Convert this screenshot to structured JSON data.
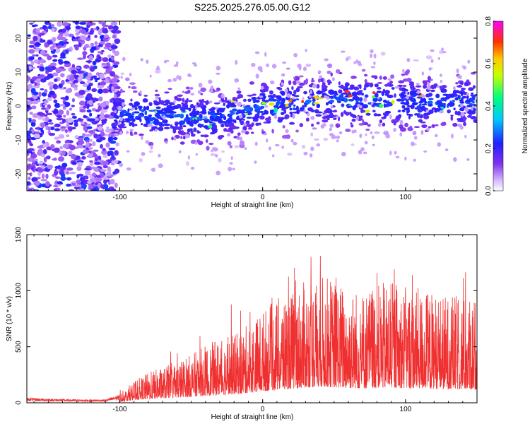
{
  "chart_data": [
    {
      "type": "heatmap",
      "title": "S225.2025.276.05.00.G12",
      "xlabel": "Height of straight line (km)",
      "ylabel": "Frequency (Hz)",
      "xlim": [
        -165,
        150
      ],
      "ylim": [
        -25,
        25
      ],
      "xticks": [
        -100,
        0,
        100
      ],
      "yticks": [
        -20,
        -10,
        0,
        10,
        20
      ],
      "colorbar": {
        "label": "Normalized spectral amplitude",
        "range": [
          0.0,
          0.8
        ],
        "ticks": [
          "0.0",
          "0.2",
          "0.4",
          "0.6",
          "0.8"
        ]
      },
      "grid": false,
      "structure": {
        "broadband_noise_region_km": [
          -165,
          -105
        ],
        "signal_band_center_hz": [
          {
            "x": -100,
            "y": -2
          },
          {
            "x": -60,
            "y": -3
          },
          {
            "x": -40,
            "y": -4
          },
          {
            "x": 0,
            "y": 0
          },
          {
            "x": 50,
            "y": 2
          },
          {
            "x": 100,
            "y": 1
          },
          {
            "x": 150,
            "y": 1
          }
        ],
        "peak_amplitude": 0.8
      }
    },
    {
      "type": "line",
      "title": "",
      "xlabel": "Height of straight line (km)",
      "ylabel": "SNR (10 * v/v)",
      "xlim": [
        -165,
        150
      ],
      "ylim": [
        0,
        1500
      ],
      "xticks": [
        -100,
        0,
        100
      ],
      "yticks": [
        0,
        500,
        1000,
        1500
      ],
      "line_color": "#f03030",
      "grid": false,
      "series": [
        {
          "x": [
            -165,
            -150,
            -130,
            -110,
            -100,
            -90,
            -80,
            -70,
            -60,
            -50,
            -40,
            -30,
            -20,
            -10,
            0,
            10,
            20,
            30,
            40,
            50,
            60,
            70,
            80,
            90,
            100,
            110,
            120,
            130,
            140,
            150
          ],
          "values": [
            30,
            25,
            20,
            20,
            50,
            120,
            170,
            200,
            230,
            270,
            320,
            360,
            380,
            440,
            520,
            580,
            620,
            680,
            720,
            690,
            650,
            640,
            660,
            680,
            650,
            640,
            620,
            600,
            600,
            590
          ]
        }
      ]
    }
  ]
}
